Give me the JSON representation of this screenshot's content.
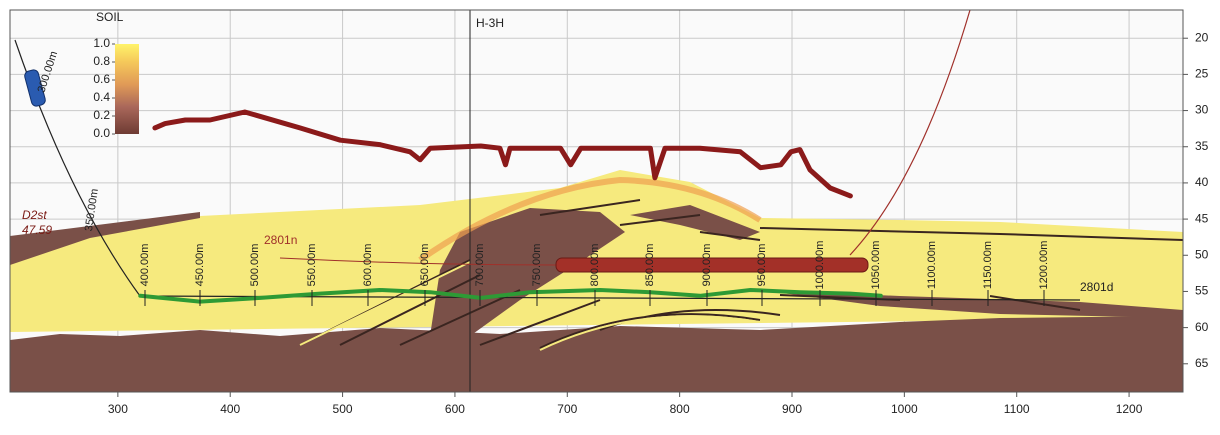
{
  "chart_data": {
    "type": "line",
    "xlim": [
      204,
      1248
    ],
    "ylim": [
      16.1,
      68.9
    ],
    "y_inverted": true,
    "grid": true,
    "xticks": [
      300,
      400,
      500,
      600,
      700,
      800,
      900,
      1000,
      1100,
      1200
    ],
    "yticks": [
      20,
      25,
      30,
      35,
      40,
      45,
      50,
      55,
      60,
      65
    ],
    "series": [
      {
        "color": "#8b1a1a",
        "x": [
          333,
          342,
          360,
          382,
          413,
          431,
          462,
          498,
          533,
          560,
          569,
          578,
          623,
          640,
          645,
          649,
          694,
          703,
          712,
          774,
          778,
          787,
          818,
          854,
          872,
          890,
          899,
          907,
          916,
          934,
          952
        ],
        "values": [
          32.4,
          31.8,
          31.3,
          31.3,
          30.2,
          31.0,
          32.4,
          34.1,
          34.7,
          35.7,
          36.8,
          35.2,
          34.9,
          35.2,
          37.5,
          35.2,
          35.2,
          37.5,
          35.2,
          35.2,
          39.3,
          35.2,
          35.2,
          35.7,
          37.9,
          37.5,
          35.7,
          35.4,
          38.2,
          40.7,
          41.8
        ]
      },
      {
        "color": "#2e9a35",
        "x": [
          320,
          373,
          427,
          480,
          533,
          578,
          623,
          667,
          729,
          774,
          818,
          863,
          907,
          952,
          979
        ],
        "values": [
          55.6,
          56.4,
          55.9,
          55.3,
          54.8,
          55.1,
          55.9,
          55.1,
          54.8,
          55.1,
          55.6,
          54.8,
          55.1,
          55.3,
          55.6
        ]
      }
    ],
    "colorbar": {
      "title": "SOIL",
      "ticks": [
        {
          "value": 1,
          "label": "1.0"
        },
        {
          "value": 0.8,
          "label": "0.8"
        },
        {
          "value": 0.6,
          "label": "0.6"
        },
        {
          "value": 0.4,
          "label": "0.4"
        },
        {
          "value": 0.2,
          "label": "0.2"
        },
        {
          "value": 0,
          "label": "0.0"
        }
      ]
    },
    "annotations": {
      "well": "H-3H",
      "formation": "D2st",
      "formation_depth": "47.59",
      "north_label": "2801n",
      "well_label": "2801d"
    },
    "measure_labels": [
      "300.00m",
      "350.00m",
      "400.00m",
      "450.00m",
      "500.00m",
      "550.00m",
      "600.00m",
      "650.00m",
      "700.00m",
      "750.00m",
      "800.00m",
      "850.00m",
      "900.00m",
      "950.00m",
      "1000.00m",
      "1050.00m",
      "1100.00m",
      "1150.00m",
      "1200.00m"
    ]
  }
}
